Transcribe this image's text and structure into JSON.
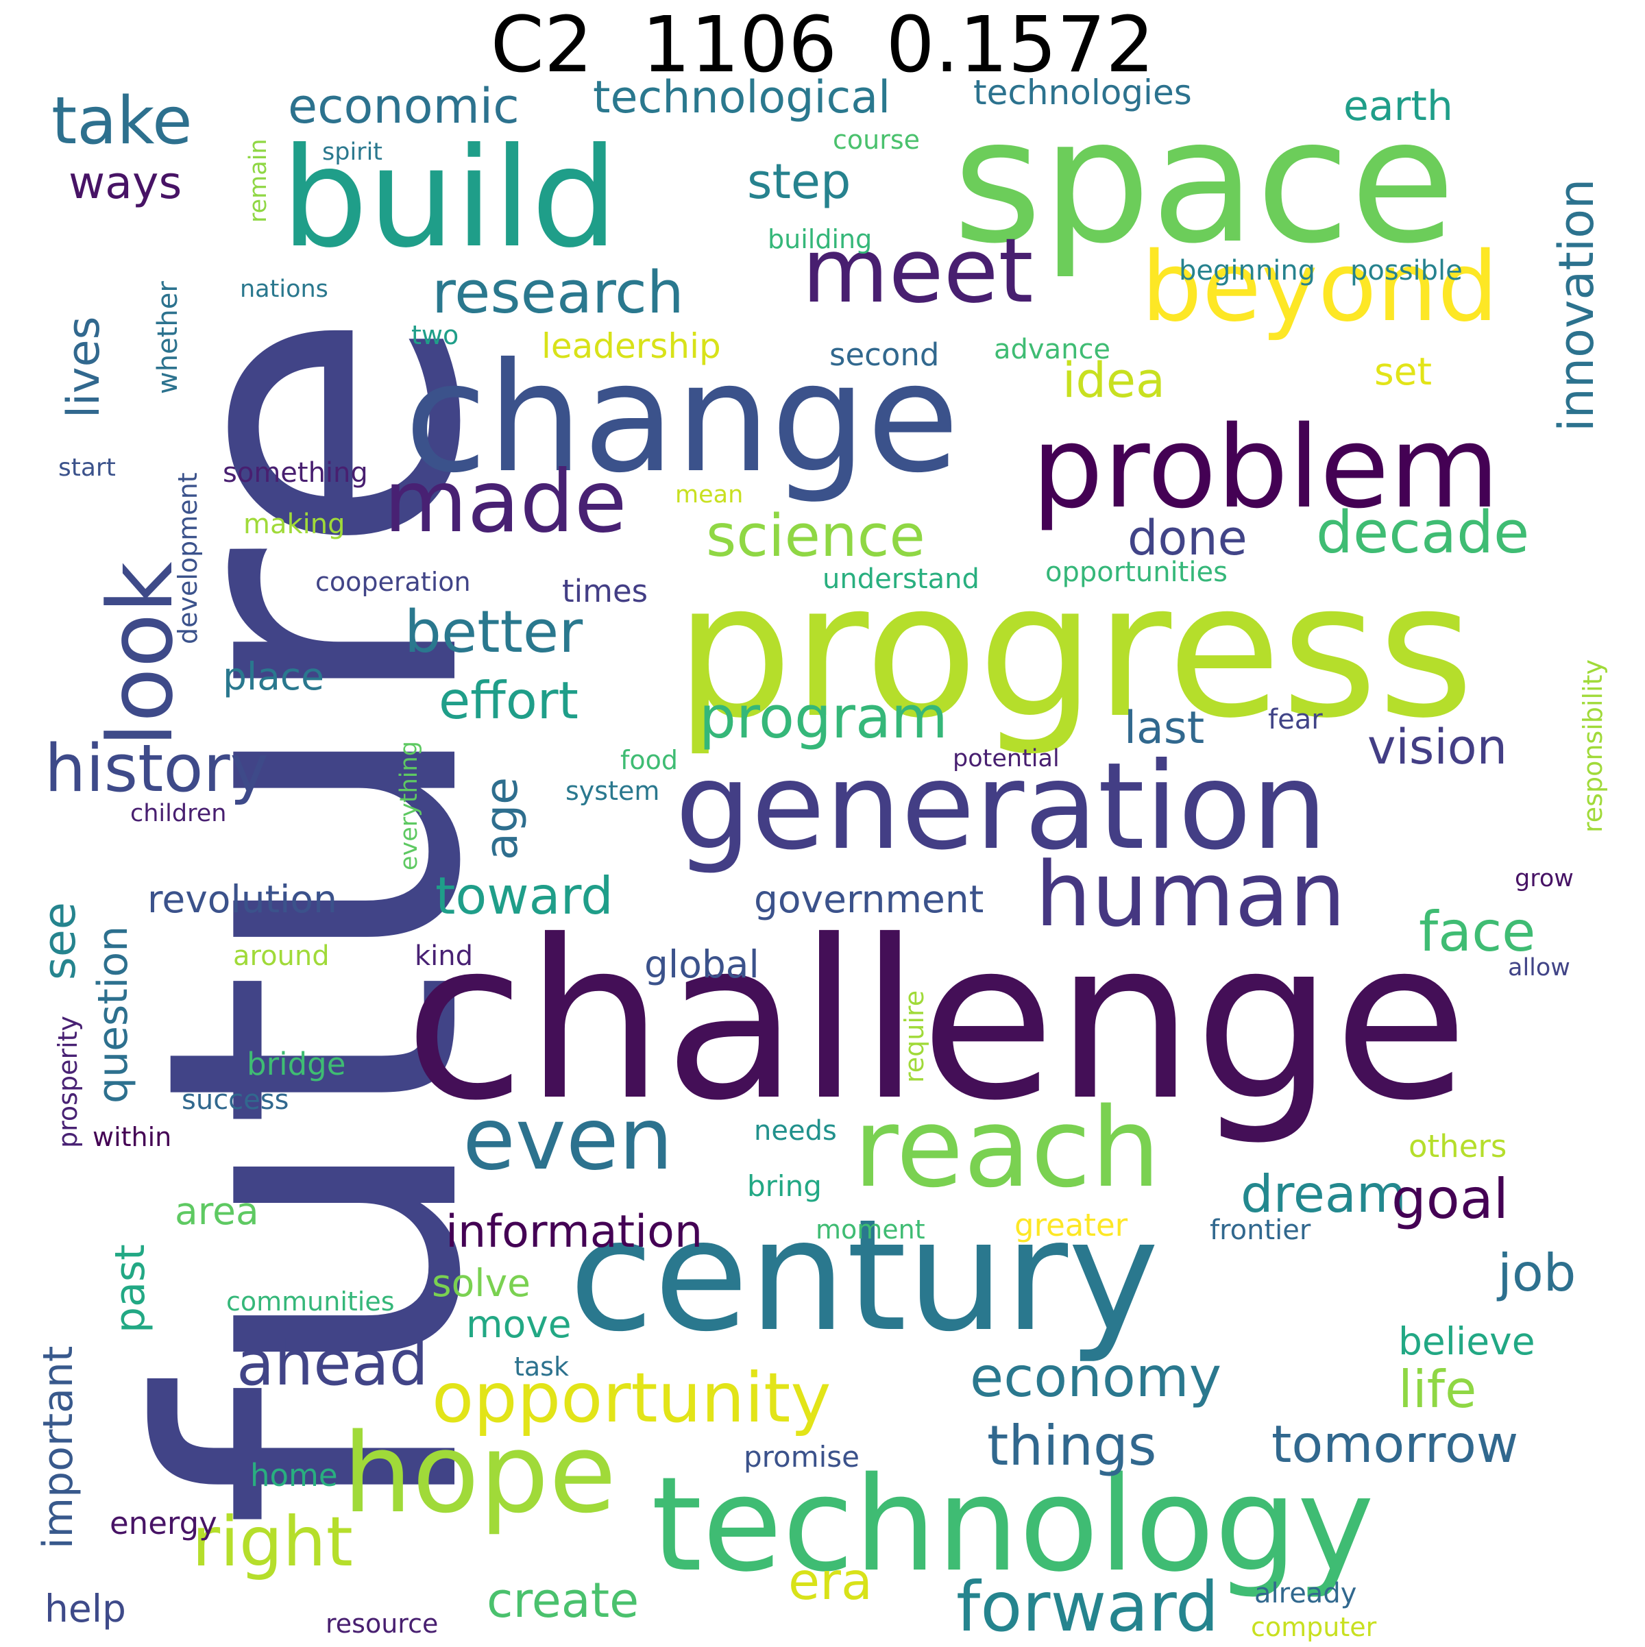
{
  "title": "C2  1106  0.1572",
  "words": [
    {
      "text": "future",
      "color": "#414487"
    },
    {
      "text": "challenge",
      "color": "#440f57"
    },
    {
      "text": "progress",
      "color": "#b5de2b"
    },
    {
      "text": "space",
      "color": "#6ccd5a"
    },
    {
      "text": "change",
      "color": "#3b528b"
    },
    {
      "text": "century",
      "color": "#2a788e"
    },
    {
      "text": "technology",
      "color": "#3fbc73"
    },
    {
      "text": "build",
      "color": "#1f9e89"
    },
    {
      "text": "generation",
      "color": "#433e85"
    },
    {
      "text": "problem",
      "color": "#440154"
    },
    {
      "text": "reach",
      "color": "#7ad151"
    },
    {
      "text": "hope",
      "color": "#a0da39"
    },
    {
      "text": "beyond",
      "color": "#fde725"
    },
    {
      "text": "human",
      "color": "#453781"
    },
    {
      "text": "meet",
      "color": "#481f70"
    },
    {
      "text": "made",
      "color": "#482173"
    },
    {
      "text": "look",
      "color": "#3e4a89"
    },
    {
      "text": "even",
      "color": "#2c728e"
    },
    {
      "text": "opportunity",
      "color": "#e2e418"
    },
    {
      "text": "right",
      "color": "#b5de2b"
    },
    {
      "text": "forward",
      "color": "#25848e"
    },
    {
      "text": "take",
      "color": "#2d708e"
    },
    {
      "text": "economic",
      "color": "#2c728e"
    },
    {
      "text": "technological",
      "color": "#2a788e"
    },
    {
      "text": "research",
      "color": "#2a788e"
    },
    {
      "text": "history",
      "color": "#3e4a89"
    },
    {
      "text": "science",
      "color": "#8fd744"
    },
    {
      "text": "decade",
      "color": "#3fbc73"
    },
    {
      "text": "program",
      "color": "#35b779"
    },
    {
      "text": "better",
      "color": "#2a788e"
    },
    {
      "text": "effort",
      "color": "#1f9e89"
    },
    {
      "text": "ahead",
      "color": "#414487"
    },
    {
      "text": "information",
      "color": "#440154"
    },
    {
      "text": "economy",
      "color": "#2a788e"
    },
    {
      "text": "things",
      "color": "#31688e"
    },
    {
      "text": "tomorrow",
      "color": "#31688e"
    },
    {
      "text": "toward",
      "color": "#1f9e89"
    },
    {
      "text": "dream",
      "color": "#23888e"
    },
    {
      "text": "goal",
      "color": "#440154"
    },
    {
      "text": "face",
      "color": "#3fbc73"
    },
    {
      "text": "job",
      "color": "#2d708e"
    },
    {
      "text": "life",
      "color": "#8fd744"
    },
    {
      "text": "era",
      "color": "#d8e219"
    },
    {
      "text": "create",
      "color": "#4ac16d"
    },
    {
      "text": "ways",
      "color": "#471365"
    },
    {
      "text": "step",
      "color": "#26828e"
    },
    {
      "text": "idea",
      "color": "#c8e020"
    },
    {
      "text": "innovation",
      "color": "#2c728e"
    },
    {
      "text": "lives",
      "color": "#31688e"
    },
    {
      "text": "vision",
      "color": "#433e85"
    },
    {
      "text": "age",
      "color": "#2e6e8e"
    },
    {
      "text": "last",
      "color": "#31688e"
    },
    {
      "text": "done",
      "color": "#414487"
    },
    {
      "text": "revolution",
      "color": "#3b528b"
    },
    {
      "text": "see",
      "color": "#25848e"
    },
    {
      "text": "question",
      "color": "#2d708e"
    },
    {
      "text": "past",
      "color": "#22a884"
    },
    {
      "text": "important",
      "color": "#38598c"
    },
    {
      "text": "earth",
      "color": "#1f9e89"
    },
    {
      "text": "set",
      "color": "#e2e418"
    },
    {
      "text": "government",
      "color": "#3b528b"
    },
    {
      "text": "global",
      "color": "#3b528b"
    },
    {
      "text": "believe",
      "color": "#22a884"
    },
    {
      "text": "place",
      "color": "#2a788e"
    },
    {
      "text": "area",
      "color": "#5ec962"
    },
    {
      "text": "solve",
      "color": "#7ad151"
    },
    {
      "text": "move",
      "color": "#22a884"
    },
    {
      "text": "help",
      "color": "#3e4a89"
    },
    {
      "text": "technologies",
      "color": "#2c728e"
    },
    {
      "text": "leadership",
      "color": "#d8e219"
    },
    {
      "text": "second",
      "color": "#31688e"
    },
    {
      "text": "advance",
      "color": "#3fbc73"
    },
    {
      "text": "beginning",
      "color": "#26828e"
    },
    {
      "text": "possible",
      "color": "#26828e"
    },
    {
      "text": "development",
      "color": "#3b528b"
    },
    {
      "text": "whether",
      "color": "#2c728e"
    },
    {
      "text": "course",
      "color": "#4ac16d"
    },
    {
      "text": "spirit",
      "color": "#2a788e"
    },
    {
      "text": "remain",
      "color": "#8fd744"
    },
    {
      "text": "building",
      "color": "#35b779"
    },
    {
      "text": "nations",
      "color": "#2a788e"
    },
    {
      "text": "two",
      "color": "#1f9e89"
    },
    {
      "text": "start",
      "color": "#3b528b"
    },
    {
      "text": "something",
      "color": "#481f70"
    },
    {
      "text": "making",
      "color": "#a0da39"
    },
    {
      "text": "mean",
      "color": "#c8e020"
    },
    {
      "text": "cooperation",
      "color": "#414487"
    },
    {
      "text": "times",
      "color": "#433e85"
    },
    {
      "text": "understand",
      "color": "#29af7f"
    },
    {
      "text": "opportunities",
      "color": "#35b779"
    },
    {
      "text": "responsibility",
      "color": "#a0da39"
    },
    {
      "text": "fear",
      "color": "#414487"
    },
    {
      "text": "potential",
      "color": "#481f70"
    },
    {
      "text": "food",
      "color": "#3fbc73"
    },
    {
      "text": "system",
      "color": "#2a788e"
    },
    {
      "text": "children",
      "color": "#481f70"
    },
    {
      "text": "everything",
      "color": "#5ec962"
    },
    {
      "text": "grow",
      "color": "#471365"
    },
    {
      "text": "around",
      "color": "#a0da39"
    },
    {
      "text": "kind",
      "color": "#482173"
    },
    {
      "text": "require",
      "color": "#a0da39"
    },
    {
      "text": "allow",
      "color": "#414487"
    },
    {
      "text": "prosperity",
      "color": "#482173"
    },
    {
      "text": "bridge",
      "color": "#3fbc73"
    },
    {
      "text": "success",
      "color": "#31688e"
    },
    {
      "text": "within",
      "color": "#440154"
    },
    {
      "text": "needs",
      "color": "#21918c"
    },
    {
      "text": "others",
      "color": "#b5de2b"
    },
    {
      "text": "bring",
      "color": "#22a884"
    },
    {
      "text": "moment",
      "color": "#3fbc73"
    },
    {
      "text": "greater",
      "color": "#fde725"
    },
    {
      "text": "frontier",
      "color": "#31688e"
    },
    {
      "text": "communities",
      "color": "#35b779"
    },
    {
      "text": "task",
      "color": "#2c728e"
    },
    {
      "text": "promise",
      "color": "#3b528b"
    },
    {
      "text": "home",
      "color": "#29af7f"
    },
    {
      "text": "energy",
      "color": "#471365"
    },
    {
      "text": "resource",
      "color": "#481f70"
    },
    {
      "text": "already",
      "color": "#31688e"
    },
    {
      "text": "computer",
      "color": "#c8e020"
    }
  ]
}
